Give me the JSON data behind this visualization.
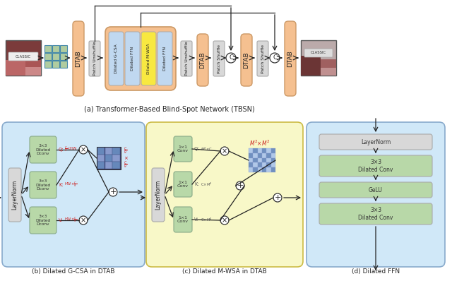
{
  "fig_width": 6.4,
  "fig_height": 4.15,
  "bg": "#ffffff",
  "orange": "#F5C090",
  "blue_sub": "#C0D8F0",
  "yellow_sub": "#F8E840",
  "green_box": "#B8D8A8",
  "gray_box": "#D8D8D8",
  "blue_panel": "#D0E8F8",
  "yellow_panel": "#F8F8C8",
  "title_a": "(a) Transformer-Based Blind-Spot Network (TBSN)",
  "title_b": "(b) Dilated G-CSA in DTAB",
  "title_c": "(c) Dilated M-WSA in DTAB",
  "title_d": "(d) Dilated FFN"
}
